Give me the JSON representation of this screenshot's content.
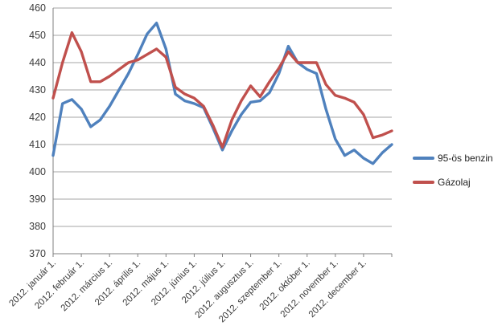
{
  "chart_data": {
    "type": "line",
    "title": "",
    "xlabel": "",
    "ylabel": "",
    "ylim": [
      370,
      460
    ],
    "ytick_step": 10,
    "yticks": [
      460,
      450,
      440,
      430,
      420,
      410,
      400,
      390,
      380,
      370
    ],
    "x_tick_labels": [
      "2012. január 1.",
      "2012. február 1.",
      "2012. március 1.",
      "2012. április 1.",
      "2012. május 1.",
      "2012. június 1.",
      "2012. július 1.",
      "2012. augusztus 1.",
      "2012. szeptember 1.",
      "2012. október 1.",
      "2012. november 1.",
      "2012. december 1."
    ],
    "points_per_label_interval": 3,
    "grid": true,
    "legend_position": "right",
    "axis_color": "#808080",
    "gridline_color": "#a6a6a6",
    "label_color": "#3b3b3b",
    "series": [
      {
        "name": "95-ös benzin",
        "color": "#4F81BD",
        "values": [
          406,
          425,
          426.5,
          423,
          416.5,
          419,
          424,
          430,
          436,
          443,
          450.5,
          454.5,
          445,
          428.5,
          426,
          425,
          423.5,
          416,
          408,
          415,
          421,
          425.5,
          426,
          429,
          436,
          446,
          440,
          437.5,
          436,
          423,
          412,
          406,
          408,
          405,
          403,
          407,
          410
        ]
      },
      {
        "name": "Gázolaj",
        "color": "#C0504D",
        "values": [
          427,
          440,
          451,
          444,
          433,
          433,
          435,
          437.5,
          440,
          441,
          443,
          445,
          442,
          431,
          428.5,
          427,
          424,
          417,
          409,
          419,
          426,
          431.5,
          427.5,
          433,
          438,
          444,
          440,
          440,
          440,
          432,
          428,
          427,
          425.5,
          421,
          412.5,
          413.5,
          415
        ]
      }
    ]
  }
}
